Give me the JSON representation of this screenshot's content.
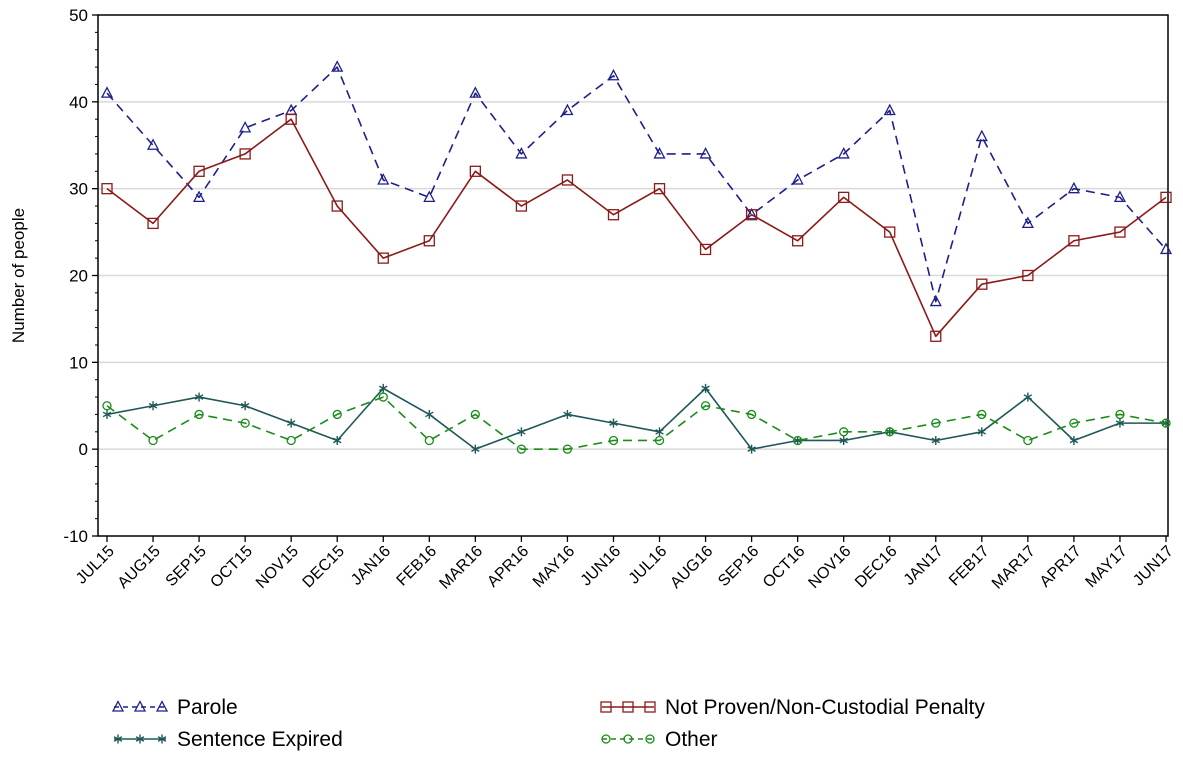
{
  "chart_data": {
    "type": "line",
    "title": "",
    "xlabel": "",
    "ylabel": "Number of people",
    "ylim": [
      -10,
      50
    ],
    "yticks": [
      -10,
      0,
      10,
      20,
      30,
      40,
      50
    ],
    "grid": true,
    "legend_position": "bottom",
    "categories": [
      "JUL15",
      "AUG15",
      "SEP15",
      "OCT15",
      "NOV15",
      "DEC15",
      "JAN16",
      "FEB16",
      "MAR16",
      "APR16",
      "MAY16",
      "JUN16",
      "JUL16",
      "AUG16",
      "SEP16",
      "OCT16",
      "NOV16",
      "DEC16",
      "JAN17",
      "FEB17",
      "MAR17",
      "APR17",
      "MAY17",
      "JUN17"
    ],
    "series": [
      {
        "name": "Parole",
        "color": "#1f1f8c",
        "dash": "dashed",
        "marker": "triangle",
        "values": [
          41,
          35,
          29,
          37,
          39,
          44,
          31,
          29,
          41,
          34,
          39,
          43,
          34,
          34,
          27,
          31,
          34,
          39,
          17,
          36,
          26,
          30,
          29,
          23
        ]
      },
      {
        "name": "Not Proven/Non-Custodial Penalty",
        "color": "#8b1a1a",
        "dash": "solid",
        "marker": "square",
        "values": [
          30,
          26,
          32,
          34,
          38,
          28,
          22,
          24,
          32,
          28,
          31,
          27,
          30,
          23,
          27,
          24,
          29,
          25,
          13,
          19,
          20,
          24,
          25,
          29
        ]
      },
      {
        "name": "Sentence Expired",
        "color": "#1f5858",
        "dash": "solid",
        "marker": "asterisk",
        "values": [
          4,
          5,
          6,
          5,
          3,
          1,
          7,
          4,
          0,
          2,
          4,
          3,
          2,
          7,
          0,
          1,
          1,
          2,
          1,
          2,
          6,
          1,
          3,
          3
        ]
      },
      {
        "name": "Other",
        "color": "#1a8c1a",
        "dash": "dashed",
        "marker": "circle",
        "values": [
          5,
          1,
          4,
          3,
          1,
          4,
          6,
          1,
          4,
          0,
          0,
          1,
          1,
          5,
          4,
          1,
          2,
          2,
          3,
          4,
          1,
          3,
          4,
          3
        ]
      }
    ]
  }
}
